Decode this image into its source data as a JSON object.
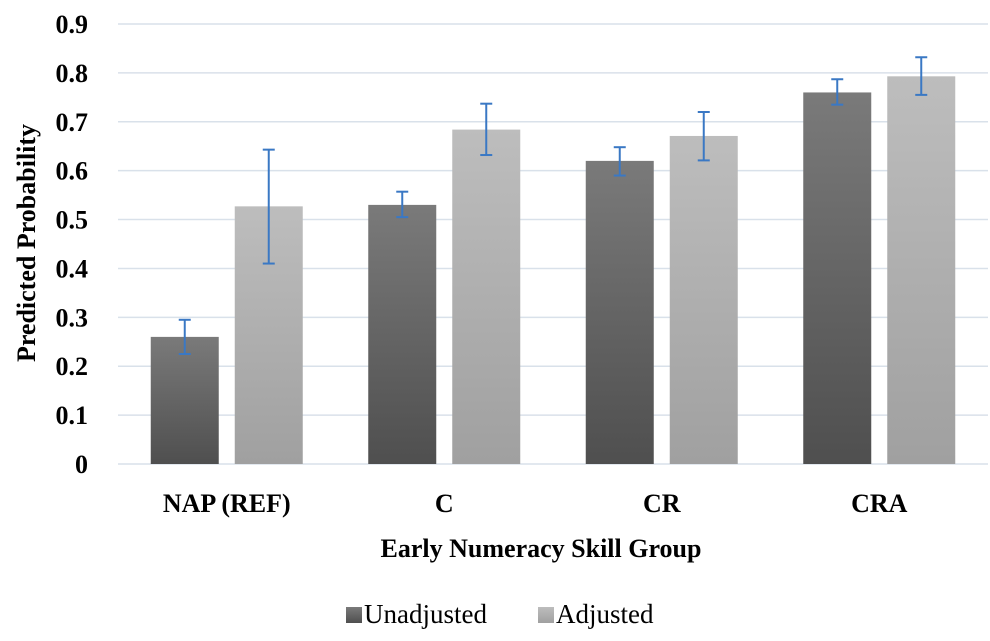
{
  "chart_data": {
    "type": "bar",
    "categories": [
      "NAP (REF)",
      "C",
      "CR",
      "CRA"
    ],
    "series": [
      {
        "name": "Unadjusted",
        "values": [
          0.26,
          0.53,
          0.62,
          0.76
        ],
        "error_low": [
          0.225,
          0.505,
          0.59,
          0.735
        ],
        "error_high": [
          0.295,
          0.557,
          0.648,
          0.787
        ]
      },
      {
        "name": "Adjusted",
        "values": [
          0.527,
          0.684,
          0.671,
          0.793
        ],
        "error_low": [
          0.41,
          0.632,
          0.621,
          0.755
        ],
        "error_high": [
          0.643,
          0.737,
          0.72,
          0.832
        ]
      }
    ],
    "yticks": [
      "0",
      "0.1",
      "0.2",
      "0.3",
      "0.4",
      "0.5",
      "0.6",
      "0.7",
      "0.8",
      "0.9"
    ],
    "ylim": [
      0,
      0.9
    ],
    "xlabel": "Early Numeracy Skill Group",
    "ylabel": "Predicted Probability",
    "grid": true,
    "legend_position": "bottom",
    "colors": {
      "Unadjusted": [
        "#7a7a7a",
        "#4f4f4f"
      ],
      "Adjusted": [
        "#bdbdbd",
        "#a0a0a0"
      ],
      "error_bar": "#3a78c4",
      "grid": "#d9e1ea"
    }
  }
}
